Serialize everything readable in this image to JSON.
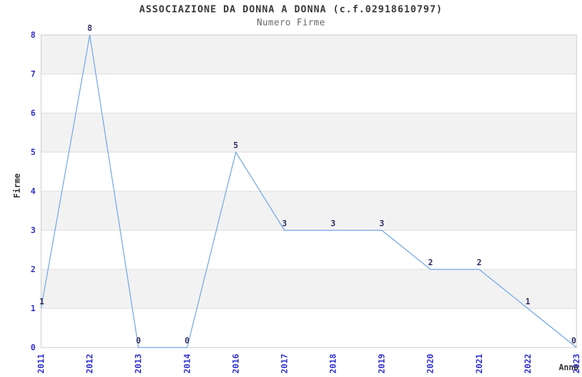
{
  "chart_data": {
    "type": "line",
    "title": "ASSOCIAZIONE DA DONNA A DONNA (c.f.02918610797)",
    "subtitle": "Numero Firme",
    "xlabel": "Anno",
    "ylabel": "Firme",
    "categories": [
      "2011",
      "2012",
      "2013",
      "2014",
      "2016",
      "2017",
      "2018",
      "2019",
      "2020",
      "2021",
      "2022",
      "2023"
    ],
    "values": [
      1,
      8,
      0,
      0,
      5,
      3,
      3,
      3,
      2,
      2,
      1,
      0
    ],
    "ylim": [
      0,
      8
    ],
    "yticks": [
      0,
      1,
      2,
      3,
      4,
      5,
      6,
      7,
      8
    ],
    "grid": "alternating-horizontal-bands",
    "legend": "none",
    "data_labels": true,
    "colors": {
      "line": "#6ba3e8",
      "tick_label": "#3232cd",
      "value_label": "#333366",
      "band_fill": "#f2f2f2",
      "grid_line": "#dcdcdc",
      "spine": "#c9c9c9",
      "title_text": "#3b3b3b",
      "subtitle_text": "#666666",
      "axis_title_text": "#333333",
      "background": "#ffffff"
    }
  }
}
